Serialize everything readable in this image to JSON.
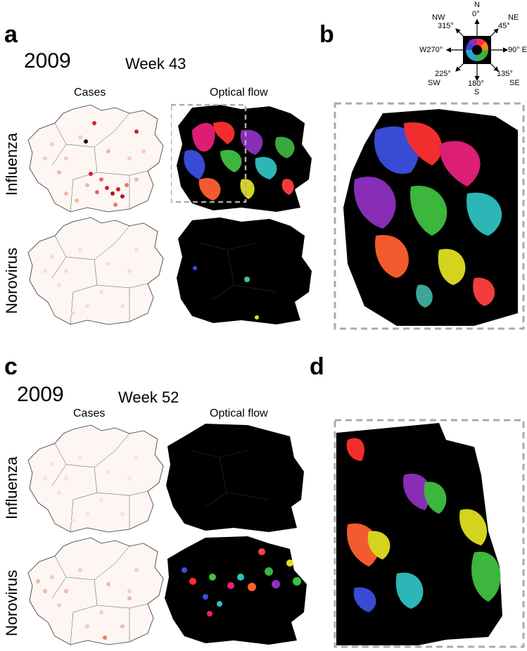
{
  "panel_a": {
    "letter": "a",
    "year": "2009",
    "week": "Week 43",
    "col_cases": "Cases",
    "col_flow": "Optical flow",
    "row_top": "Influenza",
    "row_bottom": "Norovirus"
  },
  "panel_b": {
    "letter": "b"
  },
  "panel_c": {
    "letter": "c",
    "year": "2009",
    "week": "Week 52",
    "col_cases": "Cases",
    "col_flow": "Optical flow",
    "row_top": "Influenza",
    "row_bottom": "Norovirus"
  },
  "panel_d": {
    "letter": "d"
  },
  "compass": {
    "n": "N",
    "n_deg": "0°",
    "ne": "NE",
    "ne_deg": "45°",
    "e": "90° E",
    "se_deg": "135°",
    "se": "SE",
    "s_deg": "180°",
    "s": "S",
    "sw_deg": "225°",
    "sw": "SW",
    "w": "W270°",
    "nw": "NW",
    "nw_deg": "315°"
  },
  "colors": {
    "cases_light": "#f7d6cc",
    "cases_mid": "#e47c66",
    "cases_dark": "#b3141b",
    "flow_bg": "#000000",
    "zoom_box": "#aaaaaa"
  }
}
